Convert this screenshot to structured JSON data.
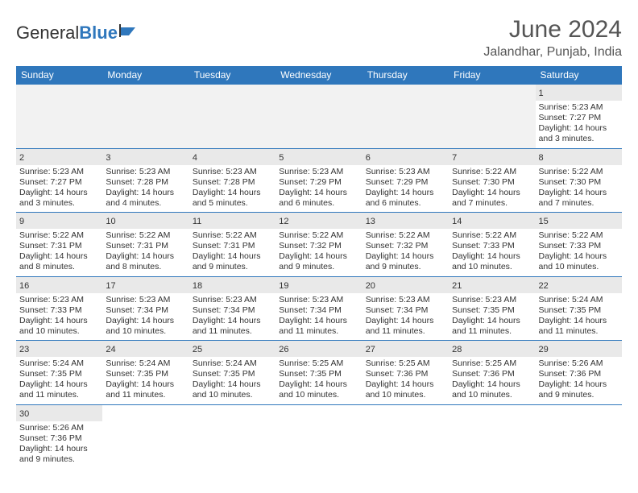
{
  "brand": {
    "part1": "General",
    "part2": "Blue"
  },
  "title": "June 2024",
  "location": "Jalandhar, Punjab, India",
  "colors": {
    "header_bg": "#2f77bc",
    "header_text": "#ffffff",
    "daynum_bg": "#e9e9e9",
    "border": "#2f77bc",
    "empty_bg": "#f2f2f2",
    "text": "#333333"
  },
  "day_labels": [
    "Sunday",
    "Monday",
    "Tuesday",
    "Wednesday",
    "Thursday",
    "Friday",
    "Saturday"
  ],
  "weeks": [
    [
      null,
      null,
      null,
      null,
      null,
      null,
      {
        "n": "1",
        "sr": "Sunrise: 5:23 AM",
        "ss": "Sunset: 7:27 PM",
        "d1": "Daylight: 14 hours",
        "d2": "and 3 minutes."
      }
    ],
    [
      {
        "n": "2",
        "sr": "Sunrise: 5:23 AM",
        "ss": "Sunset: 7:27 PM",
        "d1": "Daylight: 14 hours",
        "d2": "and 3 minutes."
      },
      {
        "n": "3",
        "sr": "Sunrise: 5:23 AM",
        "ss": "Sunset: 7:28 PM",
        "d1": "Daylight: 14 hours",
        "d2": "and 4 minutes."
      },
      {
        "n": "4",
        "sr": "Sunrise: 5:23 AM",
        "ss": "Sunset: 7:28 PM",
        "d1": "Daylight: 14 hours",
        "d2": "and 5 minutes."
      },
      {
        "n": "5",
        "sr": "Sunrise: 5:23 AM",
        "ss": "Sunset: 7:29 PM",
        "d1": "Daylight: 14 hours",
        "d2": "and 6 minutes."
      },
      {
        "n": "6",
        "sr": "Sunrise: 5:23 AM",
        "ss": "Sunset: 7:29 PM",
        "d1": "Daylight: 14 hours",
        "d2": "and 6 minutes."
      },
      {
        "n": "7",
        "sr": "Sunrise: 5:22 AM",
        "ss": "Sunset: 7:30 PM",
        "d1": "Daylight: 14 hours",
        "d2": "and 7 minutes."
      },
      {
        "n": "8",
        "sr": "Sunrise: 5:22 AM",
        "ss": "Sunset: 7:30 PM",
        "d1": "Daylight: 14 hours",
        "d2": "and 7 minutes."
      }
    ],
    [
      {
        "n": "9",
        "sr": "Sunrise: 5:22 AM",
        "ss": "Sunset: 7:31 PM",
        "d1": "Daylight: 14 hours",
        "d2": "and 8 minutes."
      },
      {
        "n": "10",
        "sr": "Sunrise: 5:22 AM",
        "ss": "Sunset: 7:31 PM",
        "d1": "Daylight: 14 hours",
        "d2": "and 8 minutes."
      },
      {
        "n": "11",
        "sr": "Sunrise: 5:22 AM",
        "ss": "Sunset: 7:31 PM",
        "d1": "Daylight: 14 hours",
        "d2": "and 9 minutes."
      },
      {
        "n": "12",
        "sr": "Sunrise: 5:22 AM",
        "ss": "Sunset: 7:32 PM",
        "d1": "Daylight: 14 hours",
        "d2": "and 9 minutes."
      },
      {
        "n": "13",
        "sr": "Sunrise: 5:22 AM",
        "ss": "Sunset: 7:32 PM",
        "d1": "Daylight: 14 hours",
        "d2": "and 9 minutes."
      },
      {
        "n": "14",
        "sr": "Sunrise: 5:22 AM",
        "ss": "Sunset: 7:33 PM",
        "d1": "Daylight: 14 hours",
        "d2": "and 10 minutes."
      },
      {
        "n": "15",
        "sr": "Sunrise: 5:22 AM",
        "ss": "Sunset: 7:33 PM",
        "d1": "Daylight: 14 hours",
        "d2": "and 10 minutes."
      }
    ],
    [
      {
        "n": "16",
        "sr": "Sunrise: 5:23 AM",
        "ss": "Sunset: 7:33 PM",
        "d1": "Daylight: 14 hours",
        "d2": "and 10 minutes."
      },
      {
        "n": "17",
        "sr": "Sunrise: 5:23 AM",
        "ss": "Sunset: 7:34 PM",
        "d1": "Daylight: 14 hours",
        "d2": "and 10 minutes."
      },
      {
        "n": "18",
        "sr": "Sunrise: 5:23 AM",
        "ss": "Sunset: 7:34 PM",
        "d1": "Daylight: 14 hours",
        "d2": "and 11 minutes."
      },
      {
        "n": "19",
        "sr": "Sunrise: 5:23 AM",
        "ss": "Sunset: 7:34 PM",
        "d1": "Daylight: 14 hours",
        "d2": "and 11 minutes."
      },
      {
        "n": "20",
        "sr": "Sunrise: 5:23 AM",
        "ss": "Sunset: 7:34 PM",
        "d1": "Daylight: 14 hours",
        "d2": "and 11 minutes."
      },
      {
        "n": "21",
        "sr": "Sunrise: 5:23 AM",
        "ss": "Sunset: 7:35 PM",
        "d1": "Daylight: 14 hours",
        "d2": "and 11 minutes."
      },
      {
        "n": "22",
        "sr": "Sunrise: 5:24 AM",
        "ss": "Sunset: 7:35 PM",
        "d1": "Daylight: 14 hours",
        "d2": "and 11 minutes."
      }
    ],
    [
      {
        "n": "23",
        "sr": "Sunrise: 5:24 AM",
        "ss": "Sunset: 7:35 PM",
        "d1": "Daylight: 14 hours",
        "d2": "and 11 minutes."
      },
      {
        "n": "24",
        "sr": "Sunrise: 5:24 AM",
        "ss": "Sunset: 7:35 PM",
        "d1": "Daylight: 14 hours",
        "d2": "and 11 minutes."
      },
      {
        "n": "25",
        "sr": "Sunrise: 5:24 AM",
        "ss": "Sunset: 7:35 PM",
        "d1": "Daylight: 14 hours",
        "d2": "and 10 minutes."
      },
      {
        "n": "26",
        "sr": "Sunrise: 5:25 AM",
        "ss": "Sunset: 7:35 PM",
        "d1": "Daylight: 14 hours",
        "d2": "and 10 minutes."
      },
      {
        "n": "27",
        "sr": "Sunrise: 5:25 AM",
        "ss": "Sunset: 7:36 PM",
        "d1": "Daylight: 14 hours",
        "d2": "and 10 minutes."
      },
      {
        "n": "28",
        "sr": "Sunrise: 5:25 AM",
        "ss": "Sunset: 7:36 PM",
        "d1": "Daylight: 14 hours",
        "d2": "and 10 minutes."
      },
      {
        "n": "29",
        "sr": "Sunrise: 5:26 AM",
        "ss": "Sunset: 7:36 PM",
        "d1": "Daylight: 14 hours",
        "d2": "and 9 minutes."
      }
    ],
    [
      {
        "n": "30",
        "sr": "Sunrise: 5:26 AM",
        "ss": "Sunset: 7:36 PM",
        "d1": "Daylight: 14 hours",
        "d2": "and 9 minutes."
      },
      null,
      null,
      null,
      null,
      null,
      null
    ]
  ]
}
